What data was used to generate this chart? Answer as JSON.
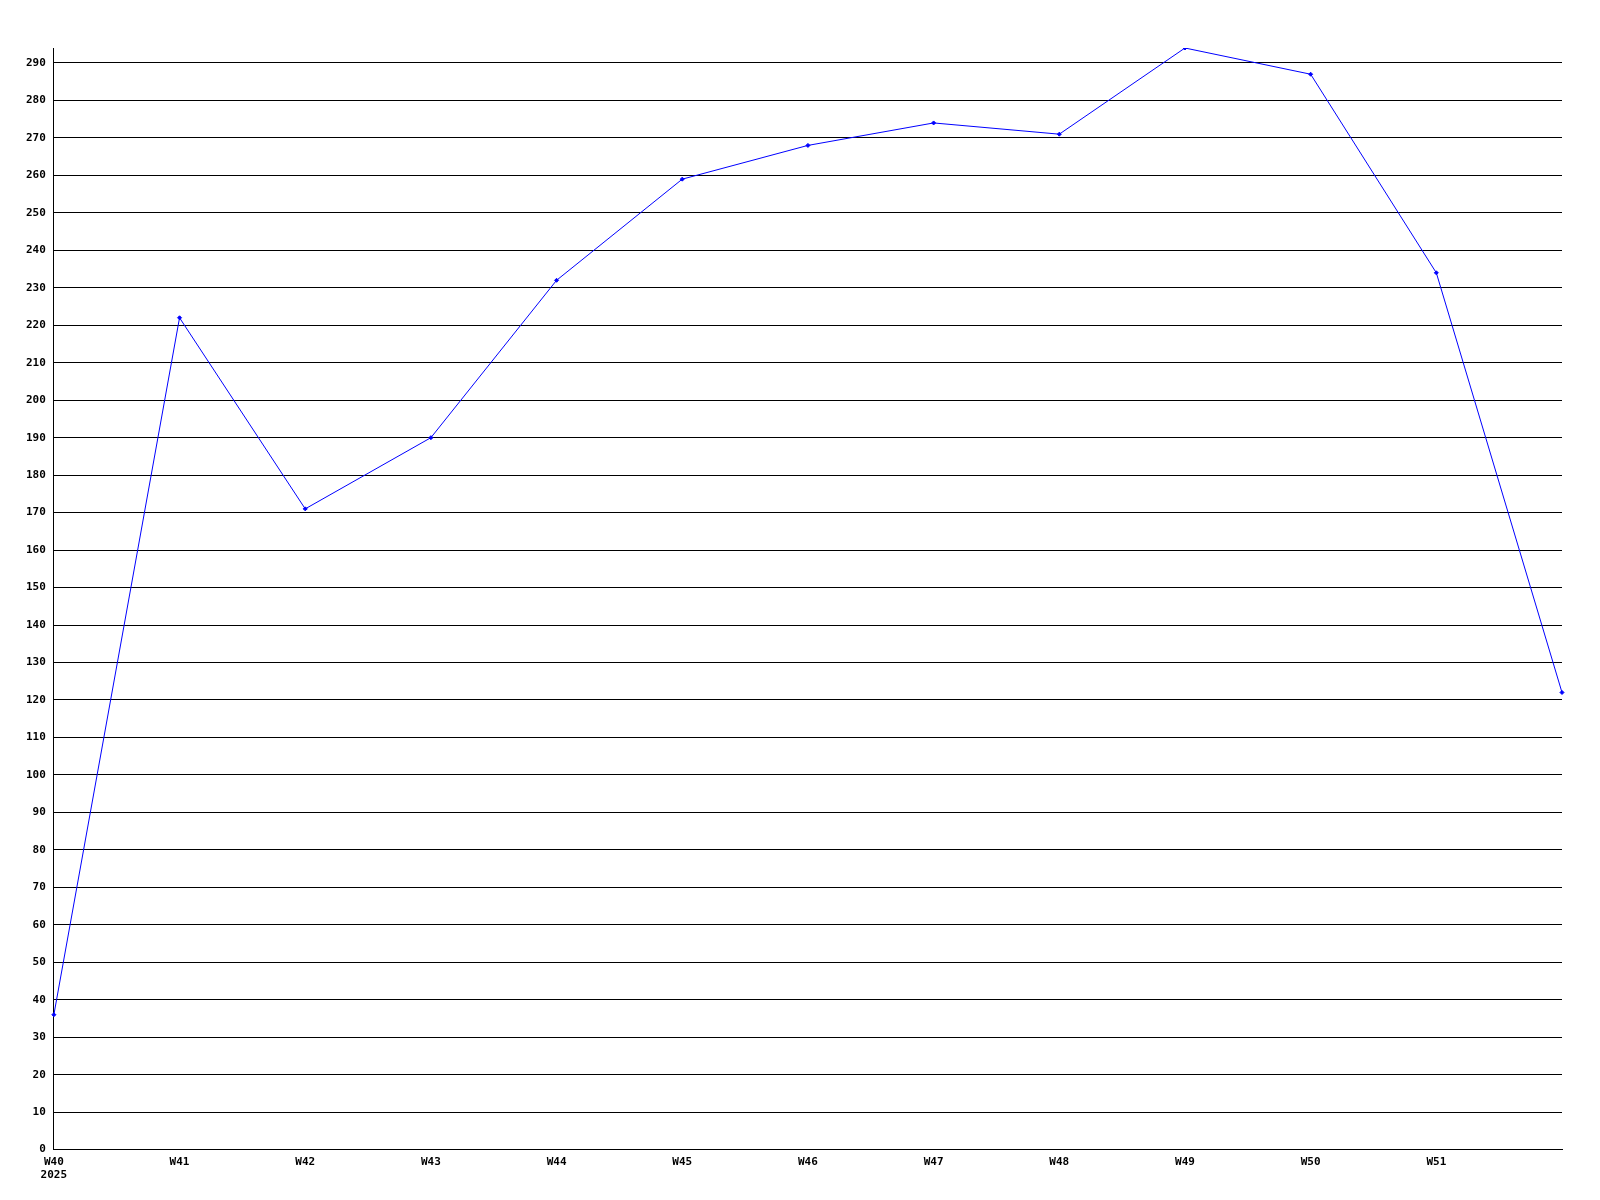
{
  "chart_data": {
    "type": "line",
    "categories": [
      "W40\n2025",
      "W41",
      "W42",
      "W43",
      "W44",
      "W45",
      "W46",
      "W47",
      "W48",
      "W49",
      "W50",
      "W51",
      null
    ],
    "series": [
      {
        "color": "#0000ff",
        "values": [
          36,
          222,
          171,
          190,
          232,
          259,
          268,
          274,
          271,
          294,
          287,
          234,
          122
        ]
      }
    ],
    "ylim": [
      0,
      294
    ],
    "yticks": [
      0,
      10,
      20,
      30,
      40,
      50,
      60,
      70,
      80,
      90,
      100,
      110,
      120,
      130,
      140,
      150,
      160,
      170,
      180,
      190,
      200,
      210,
      220,
      230,
      240,
      250,
      260,
      270,
      280,
      290
    ],
    "grid": "y",
    "legend": false,
    "marker": "diamond",
    "line_style": "solid"
  }
}
